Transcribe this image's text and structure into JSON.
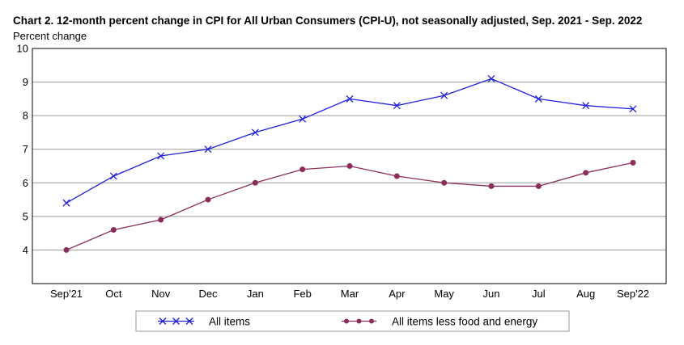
{
  "chart_data": {
    "type": "line",
    "title": "Chart 2. 12-month percent change in CPI for All Urban Consumers (CPI-U), not seasonally adjusted, Sep. 2021 - Sep. 2022",
    "ylabel": "Percent change",
    "xlabel": "",
    "ylim": [
      3,
      10
    ],
    "yticks": [
      4,
      5,
      6,
      7,
      8,
      9,
      10
    ],
    "grid": true,
    "legend_position": "bottom",
    "categories": [
      "Sep'21",
      "Oct",
      "Nov",
      "Dec",
      "Jan",
      "Feb",
      "Mar",
      "Apr",
      "May",
      "Jun",
      "Jul",
      "Aug",
      "Sep'22"
    ],
    "series": [
      {
        "name": "All items",
        "color": "#1f1fe0",
        "marker": "x",
        "values": [
          5.4,
          6.2,
          6.8,
          7.0,
          7.5,
          7.9,
          8.5,
          8.3,
          8.6,
          9.1,
          8.5,
          8.3,
          8.2
        ]
      },
      {
        "name": "All items less food and energy",
        "color": "#8b2c5a",
        "marker": "circle",
        "values": [
          4.0,
          4.6,
          4.9,
          5.5,
          6.0,
          6.4,
          6.5,
          6.2,
          6.0,
          5.9,
          5.9,
          6.3,
          6.6
        ]
      }
    ]
  }
}
